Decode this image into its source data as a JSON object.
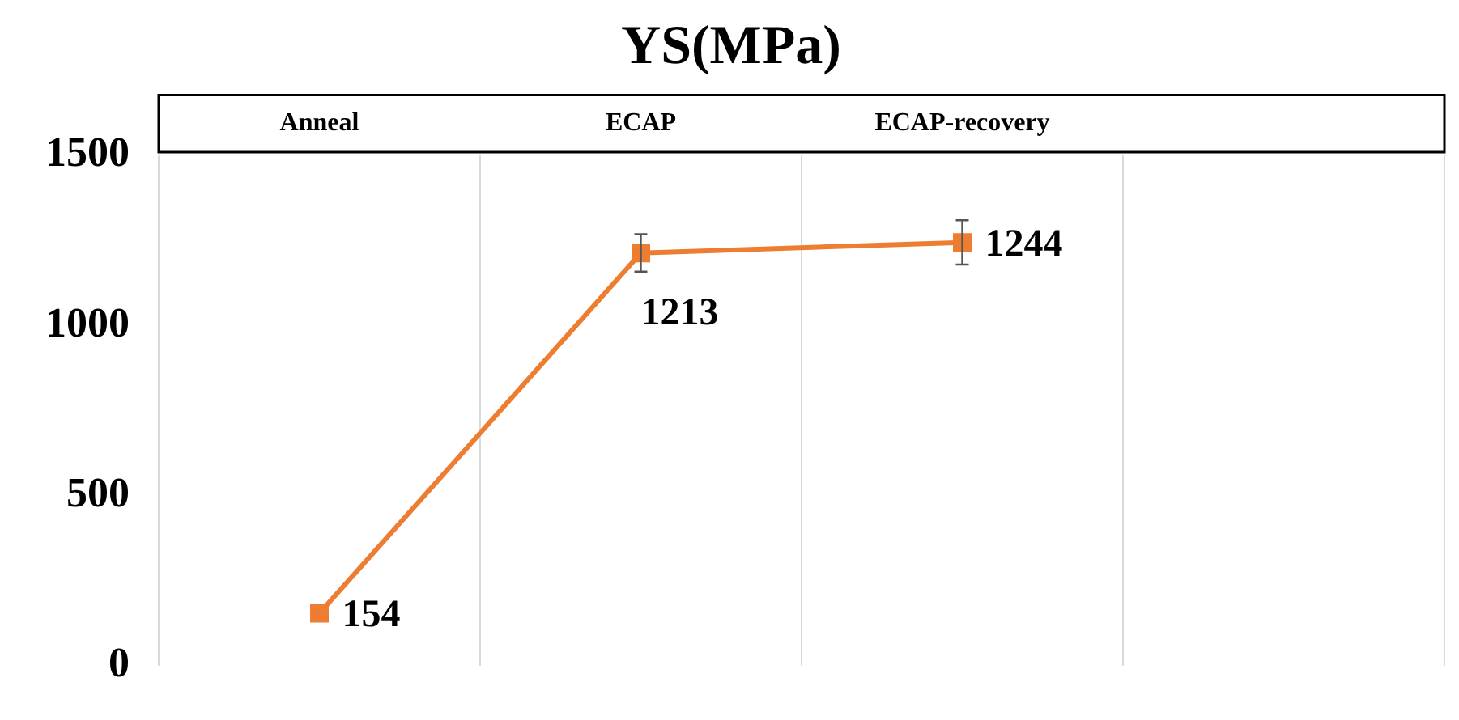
{
  "chart_data": {
    "type": "line",
    "title": "YS(MPa)",
    "categories": [
      "Anneal",
      "ECAP",
      "ECAP-recovery",
      null
    ],
    "series": [
      {
        "color": "#ed7d31",
        "values": [
          154,
          1213,
          1244,
          null
        ],
        "errors": [
          null,
          55,
          65,
          null
        ]
      }
    ],
    "ylim": [
      0,
      1500
    ],
    "yticks": [
      0,
      500,
      1000,
      1500
    ],
    "grid": "x",
    "legend": false,
    "marker": "square",
    "line_style": "solid",
    "data_labels": true
  }
}
